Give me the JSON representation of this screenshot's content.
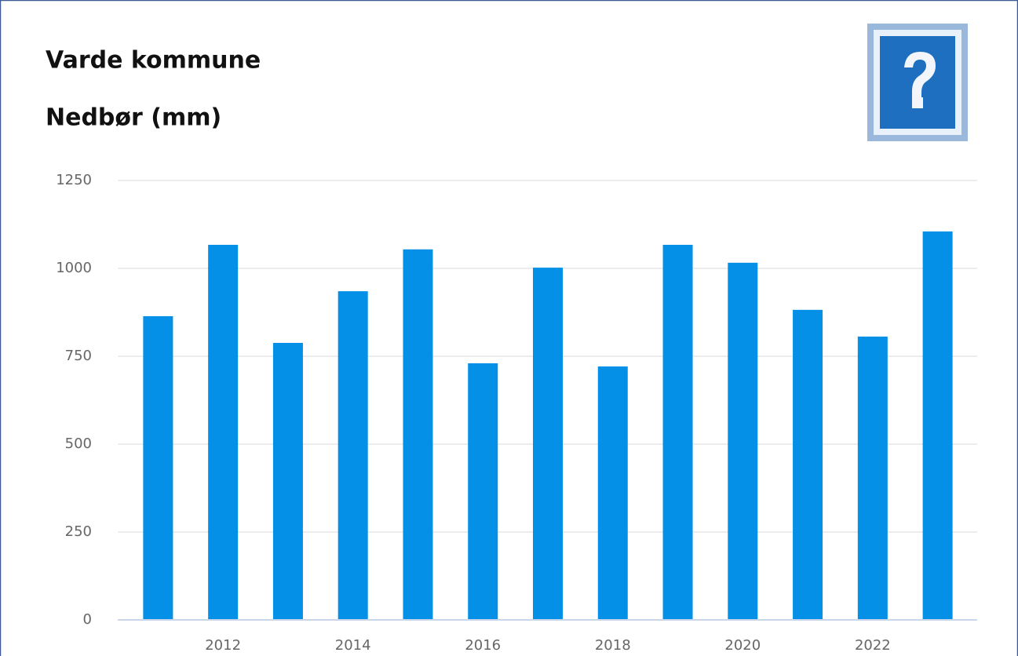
{
  "chart_data": {
    "type": "bar",
    "title": "Varde kommune",
    "subtitle": "Nedbør (mm)",
    "categories": [
      null,
      "2012",
      null,
      "2014",
      null,
      "2016",
      null,
      "2018",
      null,
      "2020",
      null,
      "2022",
      null
    ],
    "values": [
      864,
      1067,
      788,
      935,
      1054,
      730,
      1002,
      721,
      1067,
      1016,
      882,
      806,
      1105
    ],
    "color": "#0390e6",
    "ylim": [
      0,
      1250
    ],
    "yticks": [
      0,
      250,
      500,
      750,
      1000,
      1250
    ],
    "grid": true
  }
}
